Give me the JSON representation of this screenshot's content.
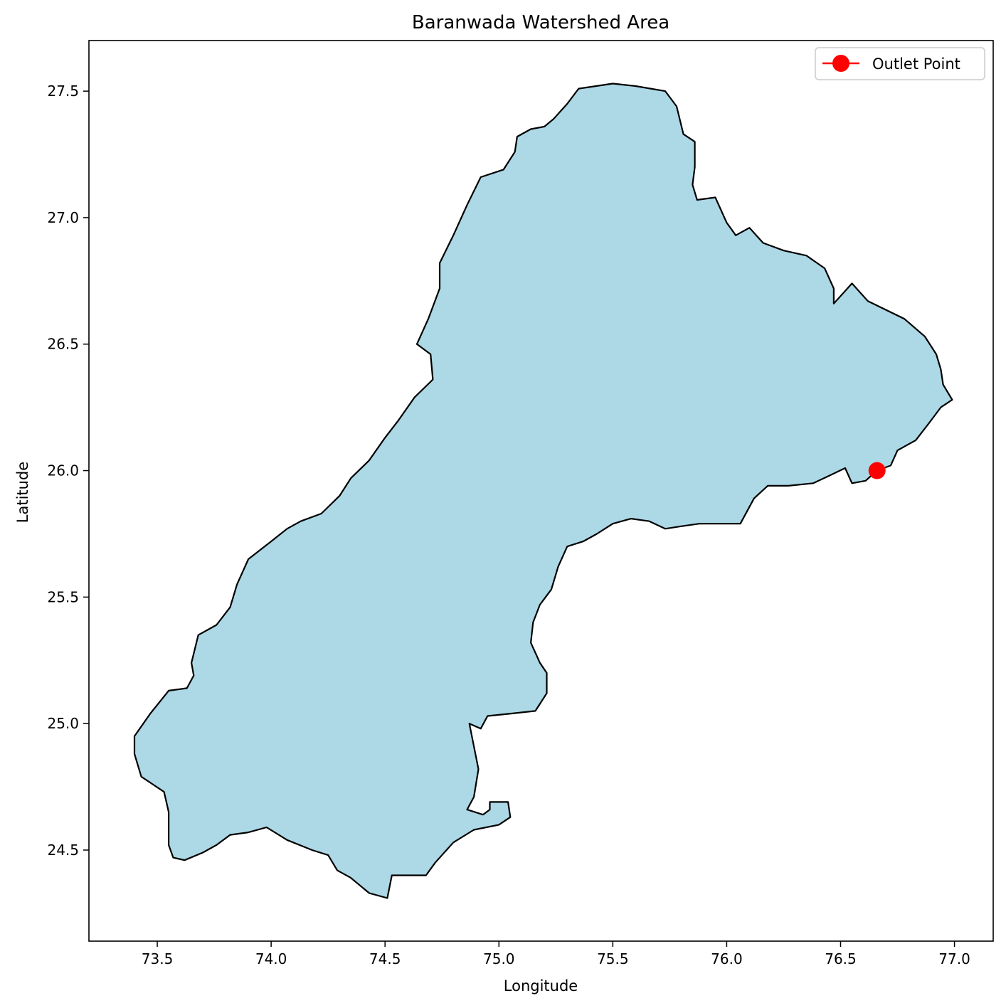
{
  "chart_data": {
    "type": "map",
    "title": "Baranwada Watershed Area",
    "xlabel": "Longitude",
    "ylabel": "Latitude",
    "xlim": [
      73.2,
      77.17
    ],
    "ylim": [
      24.14,
      27.7
    ],
    "xticks": [
      73.5,
      74.0,
      74.5,
      75.0,
      75.5,
      76.0,
      76.5,
      77.0
    ],
    "xtick_labels": [
      "73.5",
      "74.0",
      "74.5",
      "75.0",
      "75.5",
      "76.0",
      "76.5",
      "77.0"
    ],
    "yticks": [
      24.5,
      25.0,
      25.5,
      26.0,
      26.5,
      27.0,
      27.5
    ],
    "ytick_labels": [
      "24.5",
      "25.0",
      "25.5",
      "26.0",
      "26.5",
      "27.0",
      "27.5"
    ],
    "grid": false,
    "legend": {
      "placement": "top-right",
      "entries": [
        "Outlet Point"
      ]
    },
    "watershed": {
      "fill": "#add8e6",
      "edge": "#000000",
      "boundary": [
        [
          75.35,
          27.51
        ],
        [
          75.5,
          27.53
        ],
        [
          75.6,
          27.52
        ],
        [
          75.73,
          27.5
        ],
        [
          75.78,
          27.44
        ],
        [
          75.81,
          27.33
        ],
        [
          75.86,
          27.3
        ],
        [
          75.86,
          27.2
        ],
        [
          75.85,
          27.13
        ],
        [
          75.87,
          27.07
        ],
        [
          75.95,
          27.08
        ],
        [
          76.0,
          26.98
        ],
        [
          76.04,
          26.93
        ],
        [
          76.1,
          26.96
        ],
        [
          76.16,
          26.9
        ],
        [
          76.25,
          26.87
        ],
        [
          76.35,
          26.85
        ],
        [
          76.43,
          26.8
        ],
        [
          76.47,
          26.72
        ],
        [
          76.47,
          26.66
        ],
        [
          76.55,
          26.74
        ],
        [
          76.62,
          26.67
        ],
        [
          76.78,
          26.6
        ],
        [
          76.87,
          26.53
        ],
        [
          76.92,
          26.46
        ],
        [
          76.94,
          26.4
        ],
        [
          76.95,
          26.34
        ],
        [
          76.99,
          26.28
        ],
        [
          76.94,
          26.25
        ],
        [
          76.89,
          26.19
        ],
        [
          76.83,
          26.12
        ],
        [
          76.75,
          26.08
        ],
        [
          76.72,
          26.02
        ],
        [
          76.66,
          26.0
        ],
        [
          76.61,
          25.96
        ],
        [
          76.55,
          25.95
        ],
        [
          76.52,
          26.01
        ],
        [
          76.45,
          25.98
        ],
        [
          76.38,
          25.95
        ],
        [
          76.27,
          25.94
        ],
        [
          76.18,
          25.94
        ],
        [
          76.12,
          25.89
        ],
        [
          76.06,
          25.79
        ],
        [
          75.97,
          25.79
        ],
        [
          75.88,
          25.79
        ],
        [
          75.8,
          25.78
        ],
        [
          75.73,
          25.77
        ],
        [
          75.66,
          25.8
        ],
        [
          75.58,
          25.81
        ],
        [
          75.5,
          25.79
        ],
        [
          75.43,
          25.75
        ],
        [
          75.37,
          25.72
        ],
        [
          75.3,
          25.7
        ],
        [
          75.26,
          25.62
        ],
        [
          75.23,
          25.53
        ],
        [
          75.18,
          25.47
        ],
        [
          75.15,
          25.4
        ],
        [
          75.14,
          25.32
        ],
        [
          75.18,
          25.24
        ],
        [
          75.21,
          25.2
        ],
        [
          75.21,
          25.12
        ],
        [
          75.16,
          25.05
        ],
        [
          75.06,
          25.04
        ],
        [
          74.95,
          25.03
        ],
        [
          74.92,
          24.98
        ],
        [
          74.87,
          25.0
        ],
        [
          74.89,
          24.91
        ],
        [
          74.91,
          24.82
        ],
        [
          74.89,
          24.71
        ],
        [
          74.86,
          24.66
        ],
        [
          74.93,
          24.64
        ],
        [
          74.96,
          24.66
        ],
        [
          74.96,
          24.69
        ],
        [
          75.04,
          24.69
        ],
        [
          75.05,
          24.63
        ],
        [
          75.0,
          24.6
        ],
        [
          74.89,
          24.58
        ],
        [
          74.8,
          24.53
        ],
        [
          74.72,
          24.45
        ],
        [
          74.68,
          24.4
        ],
        [
          74.6,
          24.4
        ],
        [
          74.53,
          24.4
        ],
        [
          74.51,
          24.31
        ],
        [
          74.43,
          24.33
        ],
        [
          74.35,
          24.39
        ],
        [
          74.29,
          24.42
        ],
        [
          74.25,
          24.48
        ],
        [
          74.18,
          24.5
        ],
        [
          74.07,
          24.54
        ],
        [
          73.98,
          24.59
        ],
        [
          73.9,
          24.57
        ],
        [
          73.82,
          24.56
        ],
        [
          73.76,
          24.52
        ],
        [
          73.7,
          24.49
        ],
        [
          73.62,
          24.46
        ],
        [
          73.57,
          24.47
        ],
        [
          73.55,
          24.52
        ],
        [
          73.55,
          24.65
        ],
        [
          73.53,
          24.73
        ],
        [
          73.48,
          24.76
        ],
        [
          73.43,
          24.79
        ],
        [
          73.4,
          24.88
        ],
        [
          73.4,
          24.95
        ],
        [
          73.47,
          25.04
        ],
        [
          73.55,
          25.13
        ],
        [
          73.63,
          25.14
        ],
        [
          73.66,
          25.19
        ],
        [
          73.65,
          25.24
        ],
        [
          73.68,
          25.35
        ],
        [
          73.76,
          25.39
        ],
        [
          73.82,
          25.46
        ],
        [
          73.85,
          25.55
        ],
        [
          73.9,
          25.65
        ],
        [
          74.0,
          25.72
        ],
        [
          74.07,
          25.77
        ],
        [
          74.13,
          25.8
        ],
        [
          74.22,
          25.83
        ],
        [
          74.3,
          25.9
        ],
        [
          74.35,
          25.97
        ],
        [
          74.43,
          26.04
        ],
        [
          74.5,
          26.13
        ],
        [
          74.56,
          26.2
        ],
        [
          74.63,
          26.29
        ],
        [
          74.71,
          26.36
        ],
        [
          74.7,
          26.46
        ],
        [
          74.64,
          26.5
        ],
        [
          74.69,
          26.6
        ],
        [
          74.74,
          26.72
        ],
        [
          74.74,
          26.82
        ],
        [
          74.8,
          26.93
        ],
        [
          74.86,
          27.05
        ],
        [
          74.92,
          27.16
        ],
        [
          75.02,
          27.19
        ],
        [
          75.07,
          27.26
        ],
        [
          75.08,
          27.32
        ],
        [
          75.14,
          27.35
        ],
        [
          75.2,
          27.36
        ],
        [
          75.24,
          27.39
        ],
        [
          75.3,
          27.45
        ]
      ]
    },
    "series": [
      {
        "name": "Outlet Point",
        "type": "point",
        "color": "#ff0000",
        "x": [
          76.66
        ],
        "y": [
          26.0
        ]
      }
    ]
  }
}
